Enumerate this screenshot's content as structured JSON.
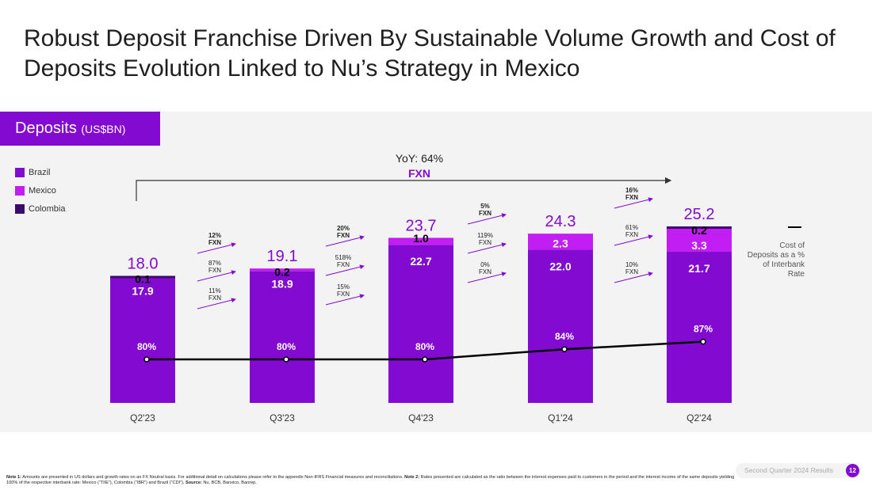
{
  "title": "Robust Deposit Franchise Driven By Sustainable Volume Growth and Cost of Deposits Evolution Linked to Nu’s Strategy in Mexico",
  "panel": {
    "label": "Deposits",
    "unit": "(US$BN)"
  },
  "colors": {
    "brazil": "#820ad1",
    "mexico": "#c21df2",
    "colombia": "#3b0a6b",
    "line": "#000000",
    "accent": "#820ad1"
  },
  "chart_data": {
    "type": "bar",
    "stacked": true,
    "categories": [
      "Q2'23",
      "Q3'23",
      "Q4'23",
      "Q1'24",
      "Q2'24"
    ],
    "series": [
      {
        "name": "Brazil",
        "values": [
          17.9,
          18.9,
          22.7,
          22.0,
          21.7
        ]
      },
      {
        "name": "Mexico",
        "values": [
          0,
          0.2,
          1.0,
          2.3,
          3.3
        ]
      },
      {
        "name": "Colombia",
        "values": [
          0.1,
          0,
          0,
          0,
          0.2
        ]
      }
    ],
    "totals": [
      18.0,
      19.1,
      23.7,
      24.3,
      25.2
    ],
    "labels": {
      "brazil": [
        "17.9",
        "18.9",
        "22.7",
        "22.0",
        "21.7"
      ],
      "mexico": [
        "",
        "0.2",
        "1.0",
        "2.3",
        "3.3"
      ],
      "colombia": [
        "0.1",
        "",
        "",
        "",
        "0.2"
      ],
      "totals": [
        "18.0",
        "19.1",
        "23.7",
        "24.3",
        "25.2"
      ]
    },
    "line_series": {
      "name": "Cost of Deposits as a % of Interbank Rate",
      "values": [
        80,
        80,
        80,
        84,
        87
      ],
      "labels": [
        "80%",
        "80%",
        "80%",
        "84%",
        "87%"
      ]
    },
    "yoy": {
      "label": "YoY: 64%",
      "sub": "FXN"
    },
    "growth_annotations": [
      {
        "total": "12%",
        "total_sub": "FXN",
        "brazil": "87%",
        "brazil_sub": "FXN",
        "other": "11%",
        "other_sub": "FXN"
      },
      {
        "total": "20%",
        "total_sub": "FXN",
        "brazil": "518%",
        "brazil_sub": "FXN",
        "other": "15%",
        "other_sub": "FXN"
      },
      {
        "total": "5%",
        "total_sub": "FXN",
        "brazil": "119%",
        "brazil_sub": "FXN",
        "other": "0%",
        "other_sub": "FXN"
      },
      {
        "total": "16%",
        "total_sub": "FXN",
        "brazil": "61%",
        "brazil_sub": "FXN",
        "other": "10%",
        "other_sub": "FXN"
      }
    ],
    "right_label": "Cost of Deposits as a % of Interbank Rate"
  },
  "footnote": {
    "note1_label": "Note 1:",
    "note1": " Amounts are presented in US dollars and growth rates on an FX Neutral basis. For additional detail on calculations please refer to the appendix Non-IFRS Financial measures and reconciliations. ",
    "note2_label": "Note 2:",
    "note2": " Rates presented are calculated as the ratio between the interest expenses paid to customers in the period and the interest income of the same deposits yielding 100% of the respective interbank rate: Mexico (“TIIE”), Colombia (“IBR”) and Brazil (“CDI”). ",
    "source_label": "Source:",
    "source": " Nu, BCB, Banxico, Banrep."
  },
  "footer": {
    "text": "Second Quarter 2024 Results",
    "page": "12"
  }
}
